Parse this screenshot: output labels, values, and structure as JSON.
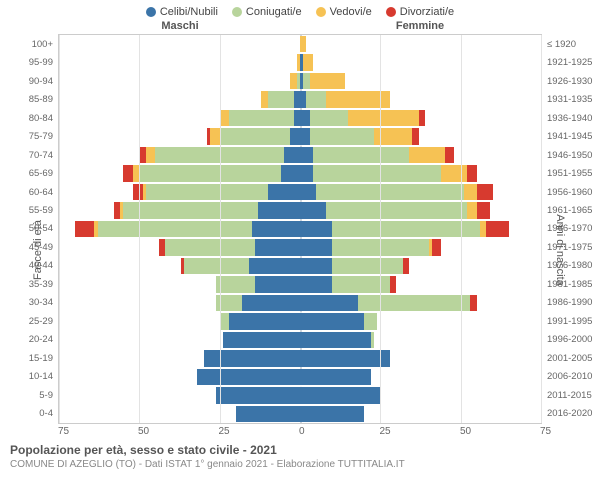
{
  "legend": [
    {
      "label": "Celibi/Nubili",
      "color": "#3b74a8"
    },
    {
      "label": "Coniugati/e",
      "color": "#b8d49c"
    },
    {
      "label": "Vedovi/e",
      "color": "#f6c254"
    },
    {
      "label": "Divorziati/e",
      "color": "#d73a2f"
    }
  ],
  "headers": {
    "left": "Maschi",
    "right": "Femmine"
  },
  "axes": {
    "left_label": "Fasce di età",
    "right_label": "Anni di nascita",
    "x_ticks": [
      75,
      50,
      25,
      0,
      25,
      50,
      75
    ],
    "x_max": 75
  },
  "colors": {
    "celibi": "#3b74a8",
    "coniugati": "#b8d49c",
    "vedovi": "#f6c254",
    "divorziati": "#d73a2f",
    "grid": "#e3e3e3",
    "center_dash": "#d0d7df",
    "border": "#cccccc"
  },
  "title": "Popolazione per età, sesso e stato civile - 2021",
  "subtitle": "COMUNE DI AZEGLIO (TO) - Dati ISTAT 1° gennaio 2021 - Elaborazione TUTTITALIA.IT",
  "rows": [
    {
      "age": "100+",
      "year": "≤ 1920",
      "m": [
        0,
        0,
        0,
        0
      ],
      "f": [
        0,
        0,
        2,
        0
      ]
    },
    {
      "age": "95-99",
      "year": "1921-1925",
      "m": [
        0,
        0,
        1,
        0
      ],
      "f": [
        1,
        0,
        3,
        0
      ]
    },
    {
      "age": "90-94",
      "year": "1926-1930",
      "m": [
        0,
        1,
        2,
        0
      ],
      "f": [
        1,
        2,
        11,
        0
      ]
    },
    {
      "age": "85-89",
      "year": "1931-1935",
      "m": [
        2,
        8,
        2,
        0
      ],
      "f": [
        2,
        6,
        20,
        0
      ]
    },
    {
      "age": "80-84",
      "year": "1936-1940",
      "m": [
        2,
        20,
        3,
        0
      ],
      "f": [
        3,
        12,
        22,
        2
      ]
    },
    {
      "age": "75-79",
      "year": "1941-1945",
      "m": [
        3,
        22,
        3,
        1
      ],
      "f": [
        3,
        20,
        12,
        2
      ]
    },
    {
      "age": "70-74",
      "year": "1946-1950",
      "m": [
        5,
        40,
        3,
        2
      ],
      "f": [
        4,
        30,
        11,
        3
      ]
    },
    {
      "age": "65-69",
      "year": "1951-1955",
      "m": [
        6,
        44,
        2,
        3
      ],
      "f": [
        4,
        40,
        8,
        3
      ]
    },
    {
      "age": "60-64",
      "year": "1956-1960",
      "m": [
        10,
        38,
        1,
        3
      ],
      "f": [
        5,
        46,
        4,
        5
      ]
    },
    {
      "age": "55-59",
      "year": "1961-1965",
      "m": [
        13,
        42,
        1,
        2
      ],
      "f": [
        8,
        44,
        3,
        4
      ]
    },
    {
      "age": "50-54",
      "year": "1966-1970",
      "m": [
        15,
        48,
        1,
        6
      ],
      "f": [
        10,
        46,
        2,
        7
      ]
    },
    {
      "age": "45-49",
      "year": "1971-1975",
      "m": [
        14,
        28,
        0,
        2
      ],
      "f": [
        10,
        30,
        1,
        3
      ]
    },
    {
      "age": "40-44",
      "year": "1976-1980",
      "m": [
        16,
        20,
        0,
        1
      ],
      "f": [
        10,
        22,
        0,
        2
      ]
    },
    {
      "age": "35-39",
      "year": "1981-1985",
      "m": [
        14,
        12,
        0,
        0
      ],
      "f": [
        10,
        18,
        0,
        2
      ]
    },
    {
      "age": "30-34",
      "year": "1986-1990",
      "m": [
        18,
        8,
        0,
        0
      ],
      "f": [
        18,
        35,
        0,
        2
      ]
    },
    {
      "age": "25-29",
      "year": "1991-1995",
      "m": [
        22,
        3,
        0,
        0
      ],
      "f": [
        20,
        4,
        0,
        0
      ]
    },
    {
      "age": "20-24",
      "year": "1996-2000",
      "m": [
        24,
        0,
        0,
        0
      ],
      "f": [
        22,
        1,
        0,
        0
      ]
    },
    {
      "age": "15-19",
      "year": "2001-2005",
      "m": [
        30,
        0,
        0,
        0
      ],
      "f": [
        28,
        0,
        0,
        0
      ]
    },
    {
      "age": "10-14",
      "year": "2006-2010",
      "m": [
        32,
        0,
        0,
        0
      ],
      "f": [
        22,
        0,
        0,
        0
      ]
    },
    {
      "age": "5-9",
      "year": "2011-2015",
      "m": [
        26,
        0,
        0,
        0
      ],
      "f": [
        25,
        0,
        0,
        0
      ]
    },
    {
      "age": "0-4",
      "year": "2016-2020",
      "m": [
        20,
        0,
        0,
        0
      ],
      "f": [
        20,
        0,
        0,
        0
      ]
    }
  ]
}
